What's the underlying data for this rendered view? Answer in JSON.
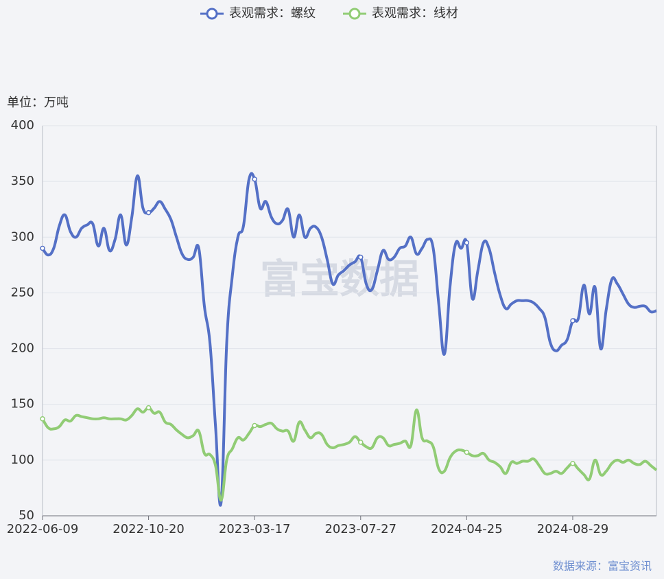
{
  "chart_data": {
    "type": "line",
    "legend": [
      "表观需求：螺纹",
      "表观需求：线材"
    ],
    "y_axis_label": "单位：万吨",
    "source": "数据来源：富宝资讯",
    "watermark": "富宝数据",
    "categories": [
      "2022-06-09",
      null,
      null,
      null,
      null,
      null,
      null,
      null,
      null,
      null,
      null,
      null,
      null,
      null,
      null,
      null,
      null,
      null,
      null,
      "2022-10-20",
      null,
      null,
      null,
      null,
      null,
      null,
      null,
      null,
      null,
      null,
      null,
      null,
      null,
      null,
      null,
      null,
      null,
      null,
      "2023-03-17",
      null,
      null,
      null,
      null,
      null,
      null,
      null,
      null,
      null,
      null,
      null,
      null,
      null,
      null,
      null,
      null,
      null,
      null,
      "2023-07-27",
      null,
      null,
      null,
      null,
      null,
      null,
      null,
      null,
      null,
      null,
      null,
      null,
      null,
      null,
      null,
      null,
      null,
      null,
      "2024-04-25",
      null,
      null,
      null,
      null,
      null,
      null,
      null,
      null,
      null,
      null,
      null,
      null,
      null,
      null,
      null,
      null,
      null,
      null,
      "2024-08-29",
      null,
      null,
      null,
      null,
      null,
      null,
      null,
      null,
      null,
      null,
      null,
      null,
      null,
      null,
      null
    ],
    "series": [
      {
        "name": "表观需求：螺纹",
        "color": "#5470c6",
        "values": [
          290,
          284,
          290,
          310,
          320,
          305,
          300,
          308,
          311,
          312,
          292,
          308,
          288,
          298,
          320,
          293,
          318,
          355,
          326,
          322,
          326,
          332,
          325,
          316,
          300,
          285,
          280,
          282,
          290,
          238,
          205,
          130,
          62,
          205,
          265,
          300,
          310,
          352,
          352,
          326,
          332,
          318,
          312,
          315,
          325,
          300,
          320,
          300,
          308,
          309,
          300,
          280,
          258,
          266,
          270,
          275,
          278,
          282,
          258,
          253,
          270,
          288,
          280,
          282,
          290,
          292,
          300,
          285,
          290,
          298,
          290,
          240,
          195,
          255,
          294,
          290,
          295,
          245,
          270,
          295,
          290,
          268,
          248,
          236,
          240,
          243,
          243,
          243,
          241,
          236,
          228,
          205,
          198,
          203,
          208,
          225,
          227,
          257,
          231,
          255,
          200,
          235,
          262,
          258,
          249,
          240,
          237,
          238,
          238,
          233,
          234
        ]
      },
      {
        "name": "表观需求：线材",
        "color": "#91cc75",
        "values": [
          137,
          129,
          128,
          130,
          136,
          135,
          140,
          139,
          138,
          137,
          137,
          138,
          137,
          137,
          137,
          136,
          140,
          146,
          143,
          147,
          142,
          143,
          134,
          132,
          127,
          123,
          120,
          122,
          126,
          106,
          105,
          95,
          64,
          100,
          110,
          120,
          118,
          124,
          131,
          130,
          132,
          133,
          128,
          126,
          126,
          117,
          134,
          127,
          120,
          124,
          123,
          114,
          111,
          113,
          114,
          116,
          121,
          116,
          112,
          111,
          120,
          120,
          113,
          114,
          115,
          117,
          113,
          145,
          120,
          117,
          112,
          92,
          90,
          102,
          108,
          109,
          107,
          104,
          104,
          106,
          100,
          98,
          94,
          88,
          98,
          97,
          99,
          99,
          101,
          95,
          88,
          88,
          90,
          88,
          93,
          97,
          92,
          87,
          83,
          100,
          87,
          90,
          97,
          100,
          98,
          100,
          97,
          96,
          99,
          95,
          91
        ]
      }
    ],
    "ylim": [
      50,
      400
    ],
    "yticks": [
      50,
      100,
      150,
      200,
      250,
      300,
      350,
      400
    ],
    "grid": true
  }
}
